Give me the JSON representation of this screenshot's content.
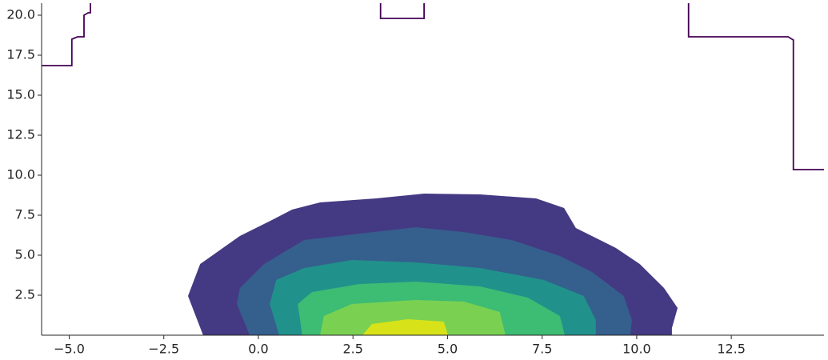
{
  "chart_data": {
    "type": "contour",
    "xlim": [
      -5.73,
      14.95
    ],
    "ylim": [
      0,
      20.75
    ],
    "xticks": [
      {
        "value": -5,
        "label": "−5.0"
      },
      {
        "value": -2.5,
        "label": "−2.5"
      },
      {
        "value": 0,
        "label": "0.0"
      },
      2.5,
      {
        "value": 5,
        "label": "5.0"
      },
      7.5,
      {
        "value": 10,
        "label": "10.0"
      },
      12.5
    ],
    "yticks": [
      2.5,
      {
        "value": 5,
        "label": "5.0"
      },
      7.5,
      {
        "value": 10,
        "label": "10.0"
      },
      12.5,
      {
        "value": 15,
        "label": "15.0"
      },
      17.5,
      {
        "value": 20,
        "label": "20.0"
      }
    ],
    "contours": [
      {
        "color": "#443983",
        "filled": true,
        "x": [
          -1.46,
          -1.86,
          -1.54,
          -0.49,
          0.36,
          0.89,
          1.63,
          3.11,
          4.38,
          5.86,
          7.34,
          8.08,
          8.39,
          9.45,
          10.08,
          10.72,
          11.08,
          10.93,
          10.93
        ],
        "y": [
          0,
          2.45,
          4.45,
          6.2,
          7.2,
          7.85,
          8.3,
          8.55,
          8.85,
          8.8,
          8.55,
          7.95,
          6.7,
          5.45,
          4.45,
          2.95,
          1.7,
          0.45,
          0
        ]
      },
      {
        "color": "#355f8d",
        "filled": true,
        "x": [
          -0.23,
          -0.57,
          -0.49,
          0.15,
          1.21,
          2.68,
          4.16,
          5.43,
          6.7,
          7.97,
          8.82,
          9.66,
          9.87,
          9.83
        ],
        "y": [
          0,
          1.95,
          2.95,
          4.45,
          5.95,
          6.35,
          6.75,
          6.45,
          5.95,
          4.95,
          3.95,
          2.45,
          0.95,
          0
        ]
      },
      {
        "color": "#21918c",
        "filled": true,
        "x": [
          0.55,
          0.3,
          0.47,
          1.21,
          2.47,
          4.16,
          5.86,
          7.55,
          8.6,
          8.92,
          8.92
        ],
        "y": [
          0,
          1.95,
          3.45,
          4.2,
          4.7,
          4.55,
          4.2,
          3.45,
          2.45,
          0.95,
          0
        ]
      },
      {
        "color": "#3dbc74",
        "filled": true,
        "x": [
          1.16,
          1.04,
          1.42,
          2.68,
          4.16,
          5.86,
          7.12,
          7.97,
          8.1
        ],
        "y": [
          0,
          1.95,
          2.7,
          3.2,
          3.35,
          3.05,
          2.35,
          1.2,
          0
        ]
      },
      {
        "color": "#7ad151",
        "filled": true,
        "x": [
          1.63,
          1.73,
          2.47,
          4.16,
          5.43,
          6.38,
          6.53
        ],
        "y": [
          0,
          1.2,
          1.95,
          2.2,
          2.1,
          1.45,
          0
        ]
      },
      {
        "color": "#d8e219",
        "filled": true,
        "x": [
          2.75,
          3.0,
          3.95,
          4.9,
          5.01
        ],
        "y": [
          0,
          0.7,
          1.0,
          0.85,
          0
        ]
      },
      {
        "color": "#440154",
        "filled": false,
        "x": [
          -5.73,
          -4.93,
          -4.93,
          -4.78,
          -4.61,
          -4.61,
          -4.5,
          -4.44,
          -4.44,
          null,
          3.23,
          3.23,
          4.38,
          4.38,
          null,
          11.37,
          11.37,
          14.0,
          14.14,
          14.14,
          14.95
        ],
        "y": [
          16.85,
          16.85,
          18.5,
          18.65,
          18.65,
          20,
          20.15,
          20.15,
          20.75,
          null,
          20.75,
          19.8,
          19.8,
          20.75,
          null,
          20.75,
          18.65,
          18.65,
          18.45,
          10.35,
          10.35
        ]
      }
    ]
  }
}
